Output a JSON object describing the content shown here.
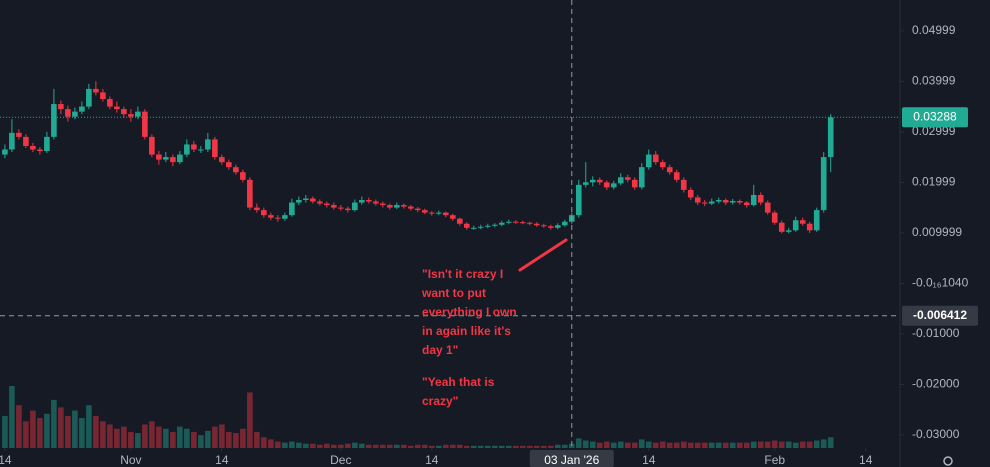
{
  "chart_data": {
    "type": "candlestick",
    "up_color": "#22ab94",
    "down_color": "#f23645",
    "grid": false,
    "xlim": [
      -0.7,
      127.9
    ],
    "ylim": [
      -0.0326,
      0.0561
    ],
    "xticks": [
      {
        "value": 0,
        "label": "14"
      },
      {
        "value": 18,
        "label": "Nov"
      },
      {
        "value": 31,
        "label": "14"
      },
      {
        "value": 48,
        "label": "Dec"
      },
      {
        "value": 61,
        "label": "14"
      },
      {
        "value": 92,
        "label": "14"
      },
      {
        "value": 110,
        "label": "Feb"
      },
      {
        "value": 123,
        "label": "14"
      }
    ],
    "yticks": [
      0.04999,
      0.03999,
      0.02999,
      0.01999,
      0.009999,
      {
        "value": 0,
        "label": "-0.0₁₆1040"
      },
      {
        "value": -0.01,
        "label": "-0.01000"
      },
      {
        "value": -0.02,
        "label": "-0.02000"
      },
      {
        "value": -0.03,
        "label": "-0.03000"
      }
    ],
    "last_price": 0.03288,
    "crosshair_x": {
      "value": 81,
      "label": "03 Jan '26"
    },
    "crosshair_y": -0.006412,
    "annotations": [
      {
        "lines": [
          "\"Isn't it crazy I",
          "want to put",
          "everything I own",
          "in again like it's",
          "day 1\""
        ]
      },
      {
        "lines": [
          "\"Yeah that is",
          "crazy\""
        ]
      }
    ],
    "ohlc": [
      [
        0.0255,
        0.0275,
        0.0248,
        0.0265
      ],
      [
        0.0265,
        0.0325,
        0.026,
        0.0298
      ],
      [
        0.0298,
        0.0305,
        0.0285,
        0.029
      ],
      [
        0.029,
        0.0295,
        0.0268,
        0.0272
      ],
      [
        0.0272,
        0.0278,
        0.026,
        0.0265
      ],
      [
        0.0265,
        0.027,
        0.0255,
        0.0262
      ],
      [
        0.0262,
        0.03,
        0.0258,
        0.029
      ],
      [
        0.029,
        0.0385,
        0.0285,
        0.0355
      ],
      [
        0.0355,
        0.0362,
        0.0335,
        0.0345
      ],
      [
        0.0345,
        0.0352,
        0.032,
        0.033
      ],
      [
        0.033,
        0.0348,
        0.0325,
        0.034
      ],
      [
        0.034,
        0.036,
        0.0335,
        0.035
      ],
      [
        0.035,
        0.0395,
        0.0345,
        0.0385
      ],
      [
        0.0385,
        0.04,
        0.0372,
        0.0378
      ],
      [
        0.0378,
        0.0385,
        0.036,
        0.0365
      ],
      [
        0.0365,
        0.037,
        0.0345,
        0.035
      ],
      [
        0.035,
        0.036,
        0.0338,
        0.0345
      ],
      [
        0.0345,
        0.035,
        0.0328,
        0.0335
      ],
      [
        0.0335,
        0.0345,
        0.032,
        0.033
      ],
      [
        0.033,
        0.035,
        0.0325,
        0.034
      ],
      [
        0.034,
        0.0345,
        0.0285,
        0.029
      ],
      [
        0.029,
        0.0295,
        0.025,
        0.0255
      ],
      [
        0.0255,
        0.0262,
        0.0235,
        0.0245
      ],
      [
        0.0245,
        0.026,
        0.024,
        0.025
      ],
      [
        0.025,
        0.0255,
        0.0232,
        0.024
      ],
      [
        0.024,
        0.0262,
        0.0236,
        0.0255
      ],
      [
        0.0255,
        0.0285,
        0.025,
        0.0275
      ],
      [
        0.0275,
        0.0282,
        0.026,
        0.0265
      ],
      [
        0.0265,
        0.0272,
        0.0258,
        0.0265
      ],
      [
        0.0265,
        0.0298,
        0.026,
        0.0285
      ],
      [
        0.0285,
        0.029,
        0.0245,
        0.025
      ],
      [
        0.025,
        0.0255,
        0.0235,
        0.024
      ],
      [
        0.024,
        0.0245,
        0.0225,
        0.023
      ],
      [
        0.023,
        0.0235,
        0.0215,
        0.022
      ],
      [
        0.022,
        0.0225,
        0.02,
        0.0205
      ],
      [
        0.0205,
        0.021,
        0.0145,
        0.015
      ],
      [
        0.015,
        0.0158,
        0.014,
        0.0145
      ],
      [
        0.0145,
        0.015,
        0.013,
        0.0135
      ],
      [
        0.0135,
        0.014,
        0.0125,
        0.013
      ],
      [
        0.013,
        0.0135,
        0.0122,
        0.0128
      ],
      [
        0.0128,
        0.014,
        0.0124,
        0.0135
      ],
      [
        0.0135,
        0.0168,
        0.0132,
        0.016
      ],
      [
        0.016,
        0.0172,
        0.0155,
        0.0165
      ],
      [
        0.0165,
        0.0175,
        0.016,
        0.0168
      ],
      [
        0.0168,
        0.0172,
        0.0158,
        0.0162
      ],
      [
        0.0162,
        0.0166,
        0.0154,
        0.0158
      ],
      [
        0.0158,
        0.0162,
        0.015,
        0.0155
      ],
      [
        0.0155,
        0.016,
        0.0146,
        0.015
      ],
      [
        0.015,
        0.0155,
        0.0144,
        0.0148
      ],
      [
        0.0148,
        0.0152,
        0.014,
        0.0145
      ],
      [
        0.0145,
        0.0166,
        0.0142,
        0.016
      ],
      [
        0.016,
        0.0172,
        0.0156,
        0.0165
      ],
      [
        0.0165,
        0.017,
        0.0158,
        0.0162
      ],
      [
        0.0162,
        0.0166,
        0.0154,
        0.0158
      ],
      [
        0.0158,
        0.0162,
        0.015,
        0.0155
      ],
      [
        0.0155,
        0.0158,
        0.0146,
        0.015
      ],
      [
        0.015,
        0.016,
        0.0147,
        0.0155
      ],
      [
        0.0155,
        0.0158,
        0.0148,
        0.0152
      ],
      [
        0.0152,
        0.0155,
        0.0144,
        0.0148
      ],
      [
        0.0148,
        0.0151,
        0.0141,
        0.0145
      ],
      [
        0.0145,
        0.0148,
        0.0137,
        0.014
      ],
      [
        0.014,
        0.0143,
        0.0134,
        0.0138
      ],
      [
        0.0138,
        0.0144,
        0.0135,
        0.014
      ],
      [
        0.014,
        0.0142,
        0.0131,
        0.0135
      ],
      [
        0.0135,
        0.0138,
        0.0124,
        0.0128
      ],
      [
        0.0128,
        0.013,
        0.0114,
        0.0118
      ],
      [
        0.0118,
        0.0121,
        0.0106,
        0.011
      ],
      [
        0.011,
        0.0114,
        0.0106,
        0.011
      ],
      [
        0.011,
        0.0116,
        0.0107,
        0.0112
      ],
      [
        0.0112,
        0.0118,
        0.0109,
        0.0114
      ],
      [
        0.0114,
        0.0119,
        0.0111,
        0.0116
      ],
      [
        0.0116,
        0.0124,
        0.0113,
        0.012
      ],
      [
        0.012,
        0.0126,
        0.0117,
        0.0122
      ],
      [
        0.0122,
        0.0125,
        0.0118,
        0.0121
      ],
      [
        0.0121,
        0.0124,
        0.0117,
        0.012
      ],
      [
        0.012,
        0.0122,
        0.0115,
        0.0118
      ],
      [
        0.0118,
        0.0121,
        0.0112,
        0.0115
      ],
      [
        0.0115,
        0.0118,
        0.011,
        0.0113
      ],
      [
        0.0113,
        0.0116,
        0.0106,
        0.011
      ],
      [
        0.011,
        0.0119,
        0.0107,
        0.0115
      ],
      [
        0.0115,
        0.0126,
        0.0112,
        0.0122
      ],
      [
        0.0122,
        0.014,
        0.0118,
        0.0135
      ],
      [
        0.0135,
        0.0205,
        0.013,
        0.0195
      ],
      [
        0.0195,
        0.024,
        0.019,
        0.02
      ],
      [
        0.02,
        0.0212,
        0.0192,
        0.0205
      ],
      [
        0.0205,
        0.021,
        0.0195,
        0.02
      ],
      [
        0.02,
        0.0204,
        0.0185,
        0.019
      ],
      [
        0.019,
        0.0203,
        0.0186,
        0.0198
      ],
      [
        0.0198,
        0.0218,
        0.0194,
        0.021
      ],
      [
        0.021,
        0.0215,
        0.02,
        0.0205
      ],
      [
        0.0205,
        0.021,
        0.0185,
        0.019
      ],
      [
        0.019,
        0.0238,
        0.0186,
        0.023
      ],
      [
        0.023,
        0.0265,
        0.0225,
        0.0255
      ],
      [
        0.0255,
        0.0262,
        0.0235,
        0.024
      ],
      [
        0.024,
        0.0245,
        0.0225,
        0.023
      ],
      [
        0.023,
        0.0235,
        0.0215,
        0.022
      ],
      [
        0.022,
        0.0225,
        0.02,
        0.0205
      ],
      [
        0.0205,
        0.021,
        0.018,
        0.0185
      ],
      [
        0.0185,
        0.019,
        0.0165,
        0.017
      ],
      [
        0.017,
        0.0175,
        0.0155,
        0.016
      ],
      [
        0.016,
        0.0165,
        0.0153,
        0.0158
      ],
      [
        0.0158,
        0.0168,
        0.0155,
        0.0162
      ],
      [
        0.0162,
        0.017,
        0.0158,
        0.0165
      ],
      [
        0.0165,
        0.0168,
        0.0155,
        0.016
      ],
      [
        0.016,
        0.0167,
        0.0156,
        0.0163
      ],
      [
        0.0163,
        0.0166,
        0.0156,
        0.016
      ],
      [
        0.016,
        0.0163,
        0.015,
        0.0155
      ],
      [
        0.0155,
        0.0195,
        0.0152,
        0.0175
      ],
      [
        0.0175,
        0.018,
        0.0155,
        0.016
      ],
      [
        0.016,
        0.0164,
        0.0136,
        0.014
      ],
      [
        0.014,
        0.0144,
        0.0116,
        0.012
      ],
      [
        0.012,
        0.0124,
        0.0099,
        0.0102
      ],
      [
        0.0102,
        0.011,
        0.0099,
        0.0105
      ],
      [
        0.0105,
        0.0132,
        0.0102,
        0.0125
      ],
      [
        0.0125,
        0.013,
        0.0114,
        0.0118
      ],
      [
        0.0118,
        0.0122,
        0.01,
        0.0105
      ],
      [
        0.0105,
        0.015,
        0.0102,
        0.0145
      ],
      [
        0.0145,
        0.026,
        0.014,
        0.025
      ],
      [
        0.025,
        0.0335,
        0.022,
        0.03288
      ]
    ],
    "volume": [
      30,
      58,
      40,
      25,
      35,
      28,
      32,
      45,
      38,
      30,
      35,
      28,
      40,
      30,
      25,
      22,
      18,
      20,
      15,
      14,
      22,
      25,
      20,
      18,
      15,
      20,
      18,
      15,
      12,
      16,
      20,
      22,
      15,
      14,
      18,
      52,
      15,
      10,
      8,
      6,
      5,
      6,
      5,
      4,
      4,
      3,
      4,
      3,
      3,
      4,
      5,
      4,
      3,
      3,
      3,
      3,
      3,
      3,
      2,
      3,
      3,
      2,
      2,
      3,
      3,
      3,
      2,
      2,
      2,
      2,
      2,
      2,
      2,
      2,
      2,
      2,
      2,
      2,
      2,
      3,
      3,
      4,
      9,
      7,
      6,
      5,
      6,
      5,
      6,
      5,
      5,
      8,
      6,
      5,
      6,
      5,
      5,
      6,
      5,
      5,
      5,
      5,
      5,
      5,
      5,
      5,
      5,
      6,
      6,
      6,
      7,
      6,
      6,
      5,
      6,
      6,
      7,
      8,
      10
    ]
  }
}
